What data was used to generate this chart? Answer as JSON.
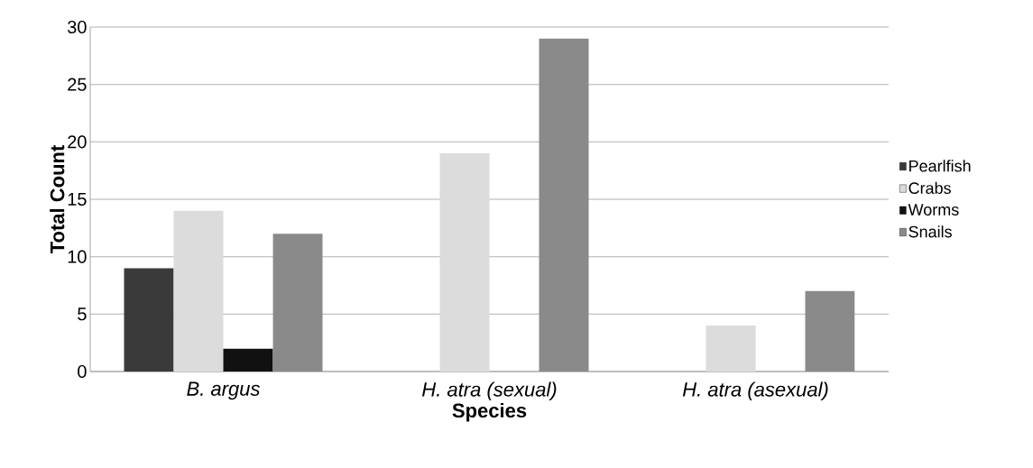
{
  "chart_data": {
    "type": "bar",
    "xlabel": "Species",
    "ylabel": "Total Count",
    "categories": [
      "B. argus",
      "H. atra (sexual)",
      "H. atra (asexual)"
    ],
    "series": [
      {
        "name": "Pearlfish",
        "color": "#3a3a3a",
        "values": [
          9,
          0,
          0
        ]
      },
      {
        "name": "Crabs",
        "color": "#dcdcdc",
        "values": [
          14,
          19,
          4
        ]
      },
      {
        "name": "Worms",
        "color": "#111111",
        "values": [
          2,
          0,
          0
        ]
      },
      {
        "name": "Snails",
        "color": "#8a8a8a",
        "values": [
          12,
          29,
          7
        ]
      }
    ],
    "ylim": [
      0,
      30
    ],
    "yticks": [
      0,
      5,
      10,
      15,
      20,
      25,
      30
    ],
    "grid": "y",
    "legend": "right"
  }
}
